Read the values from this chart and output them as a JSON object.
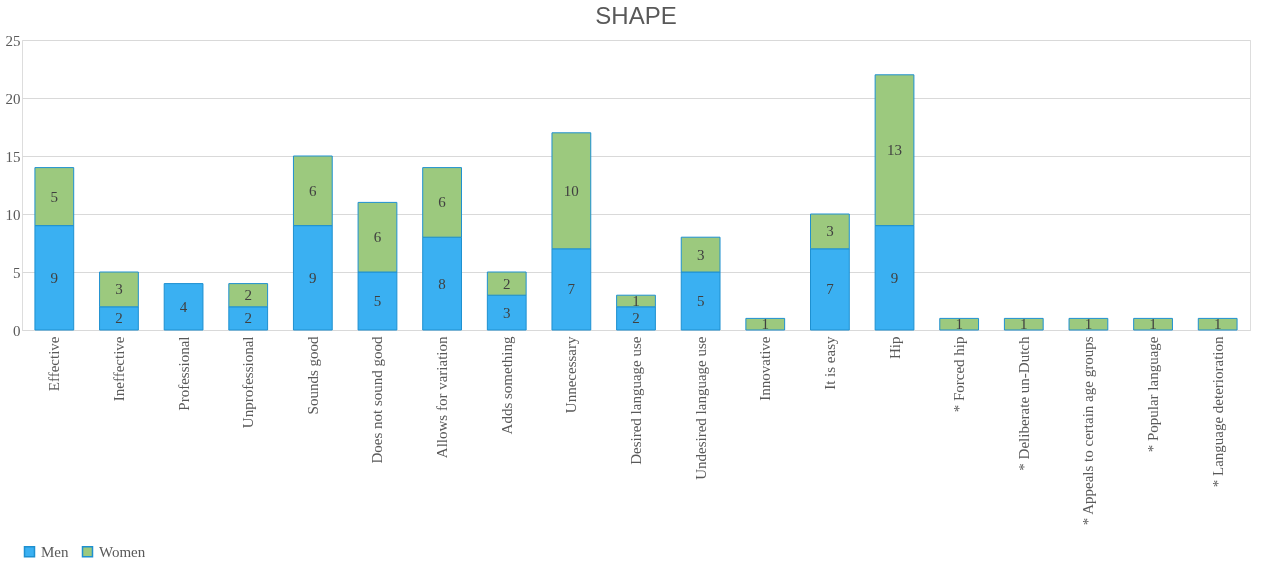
{
  "chart_data": {
    "type": "bar",
    "title": "SHAPE",
    "stacked": true,
    "data_labels": true,
    "grid": "y",
    "legend": "bottom",
    "categories": [
      "Effective",
      "Ineffective",
      "Professional",
      "Unprofessional",
      "Sounds good",
      "Does not sound good",
      "Allows for variation",
      "Adds something",
      "Unnecessary",
      "Desired language use",
      "Undesired language use",
      "Innovative",
      "It is easy",
      "Hip",
      "* Forced hip",
      "* Deliberate un-Dutch",
      "* Appeals to certain age groups",
      "* Popular language",
      "* Language deterioration"
    ],
    "ylim": [
      0,
      25
    ],
    "yticks": [
      0,
      5,
      10,
      15,
      20,
      25
    ],
    "series": [
      {
        "name": "Men",
        "color": "#3ab0f2",
        "values": [
          9,
          2,
          4,
          2,
          9,
          5,
          8,
          3,
          7,
          2,
          5,
          null,
          7,
          9,
          null,
          null,
          null,
          null,
          null
        ]
      },
      {
        "name": "Women",
        "color": "#9cc97e",
        "values": [
          5,
          3,
          null,
          2,
          6,
          6,
          6,
          2,
          10,
          1,
          3,
          1,
          3,
          13,
          1,
          1,
          1,
          1,
          1
        ]
      }
    ]
  }
}
